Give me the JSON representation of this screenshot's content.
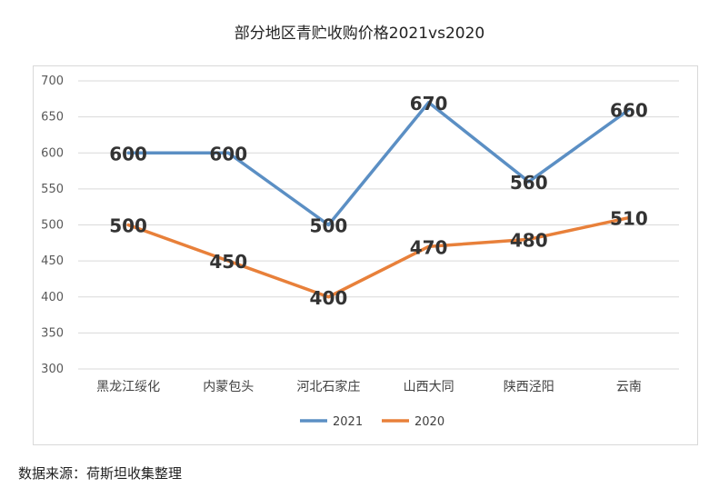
{
  "chart_data": {
    "type": "line",
    "title": "部分地区青贮收购价格2021vs2020",
    "categories": [
      "黑龙江绥化",
      "内蒙包头",
      "河北石家庄",
      "山西大同",
      "陕西泾阳",
      "云南"
    ],
    "series": [
      {
        "name": "2021",
        "values": [
          600,
          600,
          500,
          670,
          560,
          660
        ],
        "color": "#5b8fc4"
      },
      {
        "name": "2020",
        "values": [
          500,
          450,
          400,
          470,
          480,
          510
        ],
        "color": "#e8803a"
      }
    ],
    "ylim": [
      300,
      700
    ],
    "yticks": [
      300,
      350,
      400,
      450,
      500,
      550,
      600,
      650,
      700
    ],
    "grid": true,
    "legend": "bottom"
  },
  "footer": {
    "source": "数据来源：荷斯坦收集整理"
  }
}
